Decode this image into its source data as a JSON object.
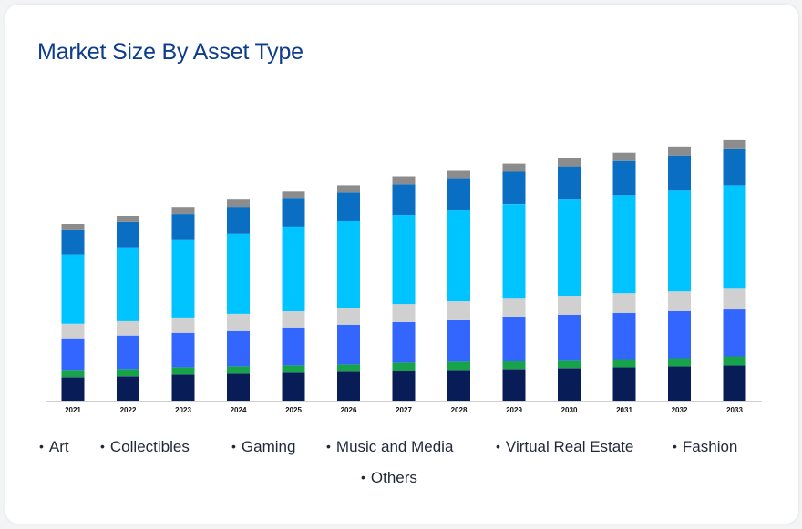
{
  "title": "Market Size By Asset Type",
  "colors": {
    "title": "#0d3d8c",
    "axis": "#cfcfcf",
    "tick_label": "#111111"
  },
  "chart_data": {
    "type": "bar",
    "stacked": true,
    "title": "Market Size By Asset Type",
    "xlabel": "",
    "ylabel": "",
    "y_axis_shown": false,
    "grid": false,
    "legend_position": "bottom",
    "categories": [
      "2021",
      "2022",
      "2023",
      "2024",
      "2025",
      "2026",
      "2027",
      "2028",
      "2029",
      "2030",
      "2031",
      "2032",
      "2033"
    ],
    "ylim": [
      0,
      300
    ],
    "series": [
      {
        "name": "Art",
        "color": "#081d58",
        "values": [
          26,
          27,
          29,
          30,
          31,
          32,
          33,
          34,
          35,
          36,
          37,
          38,
          39
        ]
      },
      {
        "name": "Collectibles",
        "color": "#16a34a",
        "values": [
          8,
          8,
          8,
          8,
          8,
          8,
          9,
          9,
          9,
          9,
          9,
          9,
          10
        ]
      },
      {
        "name": "Gaming",
        "color": "#3366ff",
        "values": [
          35,
          37,
          38,
          40,
          42,
          44,
          45,
          47,
          49,
          50,
          51,
          52,
          53
        ]
      },
      {
        "name": "Music and Media",
        "color": "#d0d0d0",
        "values": [
          16,
          16,
          17,
          18,
          18,
          19,
          20,
          20,
          21,
          21,
          22,
          22,
          23
        ]
      },
      {
        "name": "Virtual Real Estate",
        "color": "#00c4ff",
        "values": [
          77,
          82,
          86,
          89,
          94,
          96,
          99,
          101,
          104,
          107,
          109,
          112,
          114
        ]
      },
      {
        "name": "Fashion",
        "color": "#0a6fc2",
        "values": [
          27,
          28,
          29,
          30,
          31,
          32,
          34,
          35,
          36,
          37,
          38,
          39,
          40
        ]
      },
      {
        "name": "Others",
        "color": "#8c8c8c",
        "values": [
          7,
          7,
          8,
          8,
          8,
          8,
          9,
          9,
          9,
          9,
          9,
          10,
          10
        ]
      }
    ]
  }
}
